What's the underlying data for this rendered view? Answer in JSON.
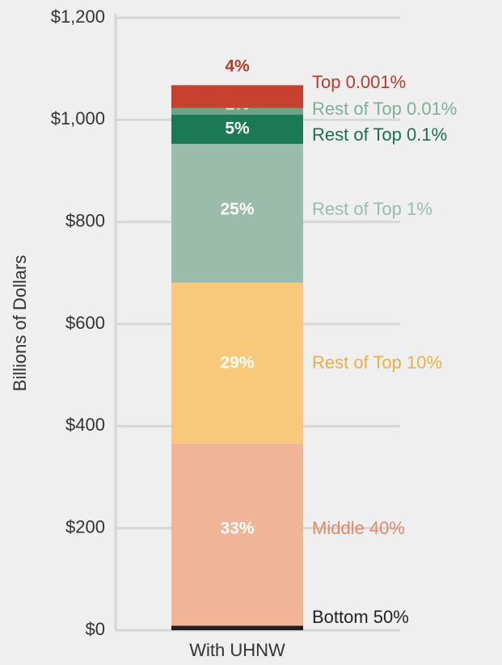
{
  "chart_data": {
    "type": "stacked_bar",
    "y_label": "Billions of Dollars",
    "categories": [
      "With UHNW"
    ],
    "ylim": [
      0,
      1200
    ],
    "yticks": [
      {
        "value": 0,
        "label": "$0"
      },
      {
        "value": 200,
        "label": "$200"
      },
      {
        "value": 400,
        "label": "$400"
      },
      {
        "value": 600,
        "label": "$600"
      },
      {
        "value": 800,
        "label": "$800"
      },
      {
        "value": 1000,
        "label": "$1,000"
      },
      {
        "value": 1200,
        "label": "$1,200"
      }
    ],
    "grid": true,
    "series": [
      {
        "name": "Bottom 50%",
        "color": "#231f20",
        "legend_color": "#231f20",
        "values": [
          9
        ],
        "percent_labels": [
          "0.8%"
        ]
      },
      {
        "name": "Middle 40%",
        "color": "#f0b496",
        "legend_color": "#e08a68",
        "values": [
          357
        ],
        "percent_labels": [
          "33%"
        ]
      },
      {
        "name": "Rest of Top 10%",
        "color": "#f8c97a",
        "legend_color": "#e9b045",
        "values": [
          315
        ],
        "percent_labels": [
          "29%"
        ]
      },
      {
        "name": "Rest of Top 1%",
        "color": "#9bbcab",
        "legend_color": "#9bbcab",
        "values": [
          272
        ],
        "percent_labels": [
          "25%"
        ]
      },
      {
        "name": "Rest of Top 0.1%",
        "color": "#1b7a55",
        "legend_color": "#17704e",
        "values": [
          57
        ],
        "percent_labels": [
          "5%"
        ]
      },
      {
        "name": "Rest of Top 0.01%",
        "color": "#6aa58a",
        "legend_color": "#7fae99",
        "values": [
          13
        ],
        "percent_labels": [
          "1%"
        ]
      },
      {
        "name": "Top 0.001%",
        "color": "#c8412e",
        "legend_color": "#c0392b",
        "values": [
          45
        ],
        "percent_labels": [
          "4%"
        ]
      }
    ]
  }
}
